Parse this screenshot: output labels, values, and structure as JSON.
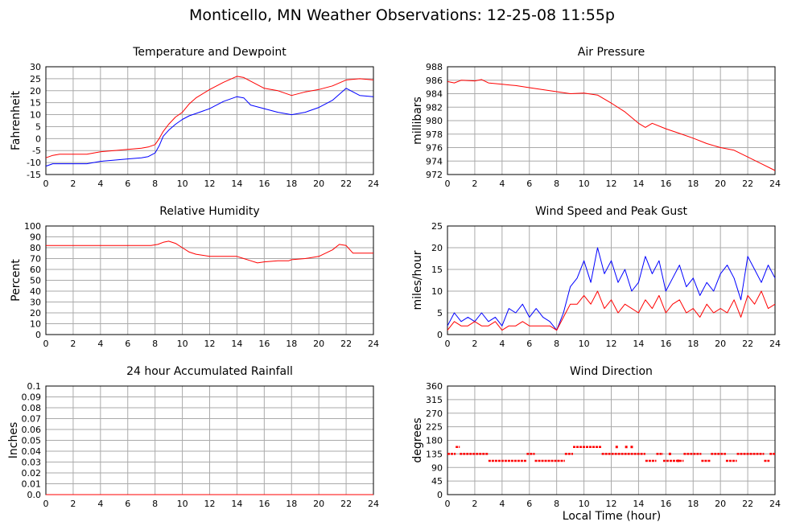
{
  "page": {
    "title": "Monticello, MN Weather Observations: 12-25-08 11:55p",
    "x_axis_label": "Local Time (hour)"
  },
  "colors": {
    "primary": "#ff0000",
    "secondary": "#0000ff",
    "grid": "#aaaaaa",
    "axis": "#000000"
  },
  "chart_data": [
    {
      "id": "temp",
      "type": "line",
      "title": "Temperature and Dewpoint",
      "ylabel": "Fahrenheit",
      "xlim": [
        0,
        24
      ],
      "ylim": [
        -15,
        30
      ],
      "xticks": [
        0,
        2,
        4,
        6,
        8,
        10,
        12,
        14,
        16,
        18,
        20,
        22,
        24
      ],
      "yticks": [
        -15,
        -10,
        -5,
        0,
        5,
        10,
        15,
        20,
        25,
        30
      ],
      "grid": true,
      "series": [
        {
          "color": "#ff0000",
          "x": [
            0,
            0.5,
            1,
            2,
            3,
            4,
            5,
            6,
            7,
            7.5,
            8,
            8.3,
            8.6,
            9,
            9.5,
            10,
            10.5,
            11,
            12,
            13,
            14,
            14.5,
            15,
            16,
            17,
            18,
            19,
            20,
            21,
            22,
            23,
            24
          ],
          "y": [
            -8,
            -7,
            -6.5,
            -6.5,
            -6.5,
            -5.5,
            -5,
            -4.5,
            -4,
            -3.5,
            -2.5,
            0,
            3,
            6,
            9,
            11,
            14.5,
            17,
            20.5,
            23.5,
            26,
            25.5,
            24,
            21,
            20,
            18,
            19.5,
            20.5,
            22,
            24.5,
            25,
            24.5
          ]
        },
        {
          "color": "#0000ff",
          "x": [
            0,
            0.5,
            1,
            2,
            3,
            4,
            5,
            6,
            7,
            7.5,
            8,
            8.3,
            8.6,
            9,
            9.5,
            10,
            10.5,
            11,
            12,
            13,
            14,
            14.5,
            15,
            16,
            17,
            18,
            19,
            20,
            21,
            22,
            23,
            24
          ],
          "y": [
            -11.5,
            -10.5,
            -10.5,
            -10.5,
            -10.5,
            -9.5,
            -9,
            -8.5,
            -8,
            -7.5,
            -6,
            -3,
            1,
            3.5,
            6,
            8,
            9.5,
            10.5,
            12.5,
            15.5,
            17.5,
            17,
            14,
            12.5,
            11,
            10,
            11,
            13,
            16,
            21,
            18,
            17.5
          ]
        }
      ]
    },
    {
      "id": "pressure",
      "type": "line",
      "title": "Air Pressure",
      "ylabel": "millibars",
      "xlim": [
        0,
        24
      ],
      "ylim": [
        972,
        988
      ],
      "xticks": [
        0,
        2,
        4,
        6,
        8,
        10,
        12,
        14,
        16,
        18,
        20,
        22,
        24
      ],
      "yticks": [
        972,
        974,
        976,
        978,
        980,
        982,
        984,
        986,
        988
      ],
      "grid": true,
      "series": [
        {
          "color": "#ff0000",
          "x": [
            0,
            0.5,
            1,
            2,
            2.5,
            3,
            4,
            5,
            6,
            7,
            8,
            9,
            10,
            11,
            12,
            13,
            14,
            14.5,
            15,
            16,
            17,
            18,
            19,
            20,
            21,
            22,
            23,
            24
          ],
          "y": [
            985.8,
            985.6,
            986,
            985.9,
            986.1,
            985.6,
            985.4,
            985.2,
            984.9,
            984.6,
            984.3,
            984,
            984.1,
            983.8,
            982.6,
            981.3,
            979.6,
            979,
            979.6,
            978.8,
            978.1,
            977.4,
            976.6,
            976,
            975.6,
            974.6,
            973.6,
            972.6
          ]
        }
      ]
    },
    {
      "id": "humidity",
      "type": "line",
      "title": "Relative Humidity",
      "ylabel": "Percent",
      "xlim": [
        0,
        24
      ],
      "ylim": [
        0,
        100
      ],
      "xticks": [
        0,
        2,
        4,
        6,
        8,
        10,
        12,
        14,
        16,
        18,
        20,
        22,
        24
      ],
      "yticks": [
        0,
        10,
        20,
        30,
        40,
        50,
        60,
        70,
        80,
        90,
        100
      ],
      "grid": true,
      "series": [
        {
          "color": "#ff0000",
          "x": [
            0,
            1,
            2,
            3,
            4,
            5,
            6,
            7,
            7.7,
            8.2,
            8.6,
            9,
            9.5,
            10,
            10.5,
            11,
            12,
            13,
            14,
            14.5,
            15,
            15.5,
            16,
            17,
            17.8,
            18,
            19,
            20,
            21,
            21.5,
            22,
            22.5,
            23,
            24
          ],
          "y": [
            82,
            82,
            82,
            82,
            82,
            82,
            82,
            82,
            82,
            83,
            85,
            86,
            84,
            80,
            76,
            74,
            72,
            72,
            72,
            70,
            68,
            66,
            67,
            68,
            68,
            69,
            70,
            72,
            78,
            83,
            82,
            75,
            75,
            75
          ]
        }
      ]
    },
    {
      "id": "wind",
      "type": "line",
      "title": "Wind Speed and Peak Gust",
      "ylabel": "miles/hour",
      "xlim": [
        0,
        24
      ],
      "ylim": [
        0,
        25
      ],
      "xticks": [
        0,
        2,
        4,
        6,
        8,
        10,
        12,
        14,
        16,
        18,
        20,
        22,
        24
      ],
      "yticks": [
        0,
        5,
        10,
        15,
        20,
        25
      ],
      "grid": true,
      "series": [
        {
          "color": "#0000ff",
          "x": [
            0,
            0.5,
            1,
            1.5,
            2,
            2.5,
            3,
            3.5,
            4,
            4.5,
            5,
            5.5,
            6,
            6.5,
            7,
            7.5,
            8,
            8.5,
            9,
            9.5,
            10,
            10.5,
            11,
            11.5,
            12,
            12.5,
            13,
            13.5,
            14,
            14.5,
            15,
            15.5,
            16,
            16.5,
            17,
            17.5,
            18,
            18.5,
            19,
            19.5,
            20,
            20.5,
            21,
            21.5,
            22,
            22.5,
            23,
            23.5,
            24
          ],
          "y": [
            2,
            5,
            3,
            4,
            3,
            5,
            3,
            4,
            2,
            6,
            5,
            7,
            4,
            6,
            4,
            3,
            1,
            5,
            11,
            13,
            17,
            12,
            20,
            14,
            17,
            12,
            15,
            10,
            12,
            18,
            14,
            17,
            10,
            13,
            16,
            11,
            13,
            9,
            12,
            10,
            14,
            16,
            13,
            8,
            18,
            15,
            12,
            16,
            13
          ]
        },
        {
          "color": "#ff0000",
          "x": [
            0,
            0.5,
            1,
            1.5,
            2,
            2.5,
            3,
            3.5,
            4,
            4.5,
            5,
            5.5,
            6,
            6.5,
            7,
            7.5,
            8,
            8.5,
            9,
            9.5,
            10,
            10.5,
            11,
            11.5,
            12,
            12.5,
            13,
            13.5,
            14,
            14.5,
            15,
            15.5,
            16,
            16.5,
            17,
            17.5,
            18,
            18.5,
            19,
            19.5,
            20,
            20.5,
            21,
            21.5,
            22,
            22.5,
            23,
            23.5,
            24
          ],
          "y": [
            1,
            3,
            2,
            2,
            3,
            2,
            2,
            3,
            1,
            2,
            2,
            3,
            2,
            2,
            2,
            2,
            1,
            4,
            7,
            7,
            9,
            7,
            10,
            6,
            8,
            5,
            7,
            6,
            5,
            8,
            6,
            9,
            5,
            7,
            8,
            5,
            6,
            4,
            7,
            5,
            6,
            5,
            8,
            4,
            9,
            7,
            10,
            6,
            7
          ]
        }
      ]
    },
    {
      "id": "rain",
      "type": "line",
      "title": "24 hour Accumulated Rainfall",
      "ylabel": "Inches",
      "xlim": [
        0,
        24
      ],
      "ylim": [
        0,
        0.1
      ],
      "xticks": [
        0,
        2,
        4,
        6,
        8,
        10,
        12,
        14,
        16,
        18,
        20,
        22,
        24
      ],
      "yticks": [
        0.0,
        0.01,
        0.02,
        0.03,
        0.04,
        0.05,
        0.06,
        0.07,
        0.08,
        0.09,
        0.1
      ],
      "ytick_labels": [
        "0.0",
        "0.01",
        "0.02",
        "0.03",
        "0.04",
        "0.05",
        "0.06",
        "0.07",
        "0.08",
        "0.09",
        "0.1"
      ],
      "grid": true,
      "series": [
        {
          "color": "#ff0000",
          "x": [
            0,
            24
          ],
          "y": [
            0,
            0
          ]
        }
      ]
    },
    {
      "id": "direction",
      "type": "scatter",
      "title": "Wind Direction",
      "ylabel": "degrees",
      "xlim": [
        0,
        24
      ],
      "ylim": [
        0,
        360
      ],
      "xticks": [
        0,
        2,
        4,
        6,
        8,
        10,
        12,
        14,
        16,
        18,
        20,
        22,
        24
      ],
      "yticks": [
        0,
        45,
        90,
        135,
        180,
        225,
        270,
        315,
        360
      ],
      "grid": true,
      "segments": [
        {
          "x0": 0,
          "x1": 0.6,
          "y": 135
        },
        {
          "x0": 0.6,
          "x1": 0.9,
          "y": 158
        },
        {
          "x0": 0.9,
          "x1": 3.0,
          "y": 135
        },
        {
          "x0": 3.0,
          "x1": 5.8,
          "y": 112
        },
        {
          "x0": 5.8,
          "x1": 6.4,
          "y": 135
        },
        {
          "x0": 6.4,
          "x1": 8.6,
          "y": 112
        },
        {
          "x0": 8.6,
          "x1": 9.2,
          "y": 135
        },
        {
          "x0": 9.2,
          "x1": 11.3,
          "y": 158
        },
        {
          "x0": 11.3,
          "x1": 14.5,
          "y": 135
        },
        {
          "x0": 14.5,
          "x1": 15.3,
          "y": 112
        },
        {
          "x0": 15.3,
          "x1": 15.8,
          "y": 135
        },
        {
          "x0": 15.8,
          "x1": 17.3,
          "y": 112
        },
        {
          "x0": 17.3,
          "x1": 18.6,
          "y": 135
        },
        {
          "x0": 18.6,
          "x1": 19.3,
          "y": 112
        },
        {
          "x0": 19.3,
          "x1": 20.4,
          "y": 135
        },
        {
          "x0": 20.4,
          "x1": 21.2,
          "y": 112
        },
        {
          "x0": 21.2,
          "x1": 23.2,
          "y": 135
        },
        {
          "x0": 23.2,
          "x1": 23.6,
          "y": 112
        },
        {
          "x0": 23.6,
          "x1": 24.0,
          "y": 135
        }
      ],
      "series": [
        {
          "color": "#ff0000",
          "x": [
            12.4,
            13.1,
            13.5,
            16.3,
            16.9
          ],
          "y": [
            158,
            158,
            158,
            135,
            112
          ]
        }
      ]
    }
  ]
}
